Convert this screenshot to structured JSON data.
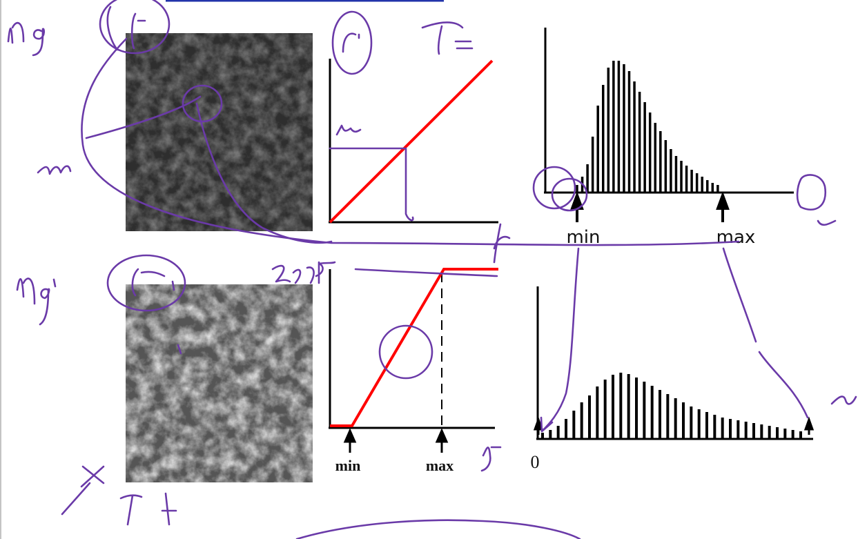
{
  "top_histogram": {
    "values": [
      10,
      22,
      40,
      80,
      125,
      155,
      180,
      190,
      190,
      185,
      175,
      160,
      145,
      130,
      115,
      100,
      88,
      75,
      62,
      52,
      45,
      38,
      32,
      27,
      22,
      17,
      13,
      10
    ],
    "min_label": "min",
    "max_label": "max"
  },
  "bottom_histogram": {
    "values": [
      8,
      12,
      18,
      28,
      40,
      52,
      62,
      75,
      85,
      92,
      95,
      93,
      88,
      82,
      76,
      70,
      64,
      58,
      52,
      46,
      42,
      38,
      34,
      30,
      28,
      26,
      24,
      22,
      20,
      18,
      16,
      14,
      12,
      10
    ],
    "zero_label": "0"
  },
  "stretch_plot": {
    "min_label": "min",
    "max_label": "max"
  }
}
